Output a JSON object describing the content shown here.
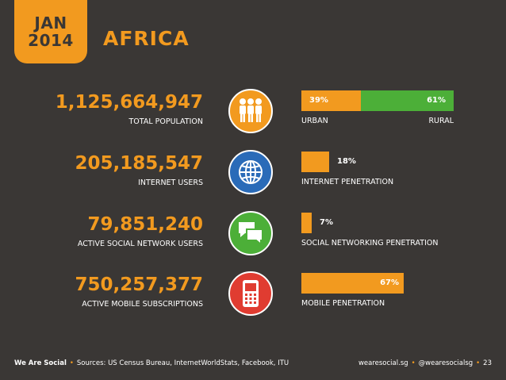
{
  "header": {
    "month": "JAN",
    "year": "2014",
    "region": "AFRICA"
  },
  "colors": {
    "background": "#3a3735",
    "accent": "#f29a1f",
    "green": "#4caf38",
    "population_icon_bg": "#f29a1f",
    "internet_icon_bg": "#2a6bb8",
    "social_icon_bg": "#4caf38",
    "mobile_icon_bg": "#e03c31"
  },
  "stats": [
    {
      "value": "1,125,664,947",
      "label": "TOTAL POPULATION",
      "icon": "people-icon"
    },
    {
      "value": "205,185,547",
      "label": "INTERNET USERS",
      "icon": "globe-icon"
    },
    {
      "value": "79,851,240",
      "label": "ACTIVE SOCIAL NETWORK USERS",
      "icon": "chat-bubbles-icon"
    },
    {
      "value": "750,257,377",
      "label": "ACTIVE MOBILE SUBSCRIPTIONS",
      "icon": "mobile-phone-icon"
    }
  ],
  "chart_data": [
    {
      "type": "bar",
      "categories": [
        "URBAN",
        "RURAL"
      ],
      "values": [
        39,
        61
      ],
      "value_labels": [
        "39%",
        "61%"
      ],
      "stacked": true,
      "colors": [
        "#f29a1f",
        "#4caf38"
      ]
    },
    {
      "type": "bar",
      "categories": [
        "INTERNET PENETRATION"
      ],
      "values": [
        18
      ],
      "value_labels": [
        "18%"
      ],
      "xlim": [
        0,
        100
      ]
    },
    {
      "type": "bar",
      "categories": [
        "SOCIAL NETWORKING PENETRATION"
      ],
      "values": [
        7
      ],
      "value_labels": [
        "7%"
      ],
      "xlim": [
        0,
        100
      ]
    },
    {
      "type": "bar",
      "categories": [
        "MOBILE PENETRATION"
      ],
      "values": [
        67
      ],
      "value_labels": [
        "67%"
      ],
      "xlim": [
        0,
        100
      ]
    }
  ],
  "footer": {
    "brand": "We Are Social",
    "sources": "Sources: US Census Bureau, InternetWorldStats, Facebook, ITU",
    "website": "wearesocial.sg",
    "handle": "@wearesocialsg",
    "page": "23"
  }
}
